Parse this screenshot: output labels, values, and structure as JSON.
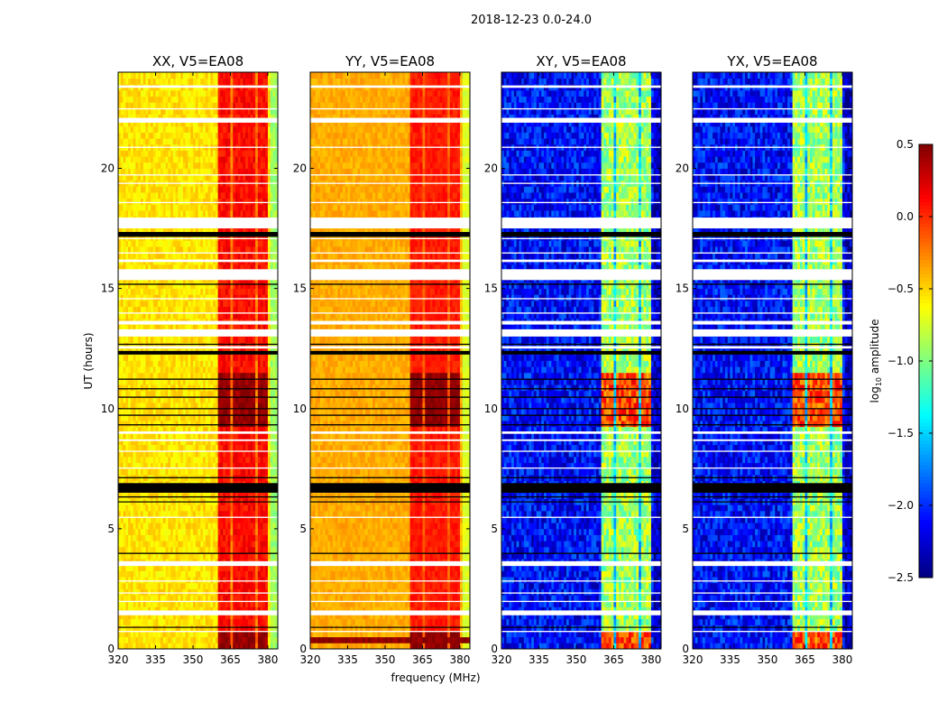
{
  "chart_data": {
    "type": "heatmap",
    "title": "2018-12-23 0.0-24.0",
    "xlabel": "frequency (MHz)",
    "ylabel": "UT (hours)",
    "xlim": [
      320,
      384
    ],
    "ylim": [
      0,
      24
    ],
    "xticks": [
      "320",
      "335",
      "350",
      "365",
      "380"
    ],
    "xtick_values": [
      320,
      335,
      350,
      365,
      380
    ],
    "yticks": [
      "0",
      "5",
      "10",
      "15",
      "20"
    ],
    "ytick_values": [
      0,
      5,
      10,
      15,
      20
    ],
    "colorbar": {
      "label_main": "log",
      "label_sub": "10",
      "label_rest": " amplitude",
      "range": [
        -2.5,
        0.5
      ],
      "ticks": [
        "0.5",
        "0.0",
        "−0.5",
        "−1.0",
        "−1.5",
        "−2.0",
        "−2.5"
      ],
      "tick_values": [
        0.5,
        0.0,
        -0.5,
        -1.0,
        -1.5,
        -2.0,
        -2.5
      ],
      "colormap": "jet"
    },
    "rfi_bands_mhz": [
      [
        360.5,
        364.8
      ],
      [
        365.8,
        369.8
      ],
      [
        370.5,
        374.9
      ],
      [
        375.6,
        380.0
      ]
    ],
    "strong_rfi_hours": [
      [
        9.2,
        11.6
      ],
      [
        0.1,
        0.7
      ]
    ],
    "panels": [
      {
        "title": "XX, V5=EA08",
        "background_log10": -0.55,
        "band_log10": 0.1,
        "strong_band_log10": 0.45,
        "noise": 0.12
      },
      {
        "title": "YY, V5=EA08",
        "background_log10": -0.38,
        "band_log10": 0.05,
        "strong_band_log10": 0.45,
        "noise": 0.08,
        "low_row_hours": [
          0.2,
          0.5
        ],
        "low_row_log10": 0.45
      },
      {
        "title": "XY, V5=EA08",
        "background_log10": -2.1,
        "band_log10": -0.9,
        "strong_band_log10": -0.1,
        "noise": 0.3
      },
      {
        "title": "YX, V5=EA08",
        "background_log10": -2.1,
        "band_log10": -0.9,
        "strong_band_log10": -0.1,
        "noise": 0.3
      }
    ],
    "flagged_rows_hours": [
      {
        "t": [
          23.35,
          23.45
        ],
        "kind": "white"
      },
      {
        "t": [
          22.45,
          22.5
        ],
        "kind": "white"
      },
      {
        "t": [
          21.9,
          22.1
        ],
        "kind": "white"
      },
      {
        "t": [
          20.85,
          20.9
        ],
        "kind": "white"
      },
      {
        "t": [
          19.7,
          19.75
        ],
        "kind": "white"
      },
      {
        "t": [
          19.35,
          19.4
        ],
        "kind": "white"
      },
      {
        "t": [
          18.55,
          18.6
        ],
        "kind": "white"
      },
      {
        "t": [
          17.5,
          17.95
        ],
        "kind": "white"
      },
      {
        "t": [
          17.15,
          17.35
        ],
        "kind": "black"
      },
      {
        "t": [
          17.05,
          17.1
        ],
        "kind": "white"
      },
      {
        "t": [
          16.45,
          16.5
        ],
        "kind": "white"
      },
      {
        "t": [
          16.1,
          16.2
        ],
        "kind": "white"
      },
      {
        "t": [
          15.35,
          15.8
        ],
        "kind": "white"
      },
      {
        "t": [
          15.15,
          15.2
        ],
        "kind": "black"
      },
      {
        "t": [
          14.55,
          14.6
        ],
        "kind": "white"
      },
      {
        "t": [
          13.95,
          14.0
        ],
        "kind": "white"
      },
      {
        "t": [
          13.5,
          13.65
        ],
        "kind": "white"
      },
      {
        "t": [
          13.0,
          13.3
        ],
        "kind": "white"
      },
      {
        "t": [
          12.65,
          12.7
        ],
        "kind": "black"
      },
      {
        "t": [
          12.5,
          12.6
        ],
        "kind": "white"
      },
      {
        "t": [
          12.25,
          12.4
        ],
        "kind": "black"
      },
      {
        "t": [
          11.2,
          11.25
        ],
        "kind": "black"
      },
      {
        "t": [
          10.8,
          10.85
        ],
        "kind": "black"
      },
      {
        "t": [
          10.45,
          10.5
        ],
        "kind": "black"
      },
      {
        "t": [
          9.98,
          10.02
        ],
        "kind": "black"
      },
      {
        "t": [
          9.7,
          9.75
        ],
        "kind": "black"
      },
      {
        "t": [
          9.3,
          9.35
        ],
        "kind": "black"
      },
      {
        "t": [
          8.95,
          9.05
        ],
        "kind": "white"
      },
      {
        "t": [
          8.65,
          8.72
        ],
        "kind": "white"
      },
      {
        "t": [
          8.2,
          8.25
        ],
        "kind": "white"
      },
      {
        "t": [
          7.5,
          7.55
        ],
        "kind": "white"
      },
      {
        "t": [
          7.1,
          7.15
        ],
        "kind": "black"
      },
      {
        "t": [
          6.5,
          6.9
        ],
        "kind": "black"
      },
      {
        "t": [
          6.3,
          6.35
        ],
        "kind": "black"
      },
      {
        "t": [
          6.1,
          6.14
        ],
        "kind": "black"
      },
      {
        "t": [
          5.45,
          5.5
        ],
        "kind": "white"
      },
      {
        "t": [
          3.95,
          4.0
        ],
        "kind": "black"
      },
      {
        "t": [
          3.45,
          3.65
        ],
        "kind": "white"
      },
      {
        "t": [
          2.8,
          2.85
        ],
        "kind": "white"
      },
      {
        "t": [
          2.3,
          2.35
        ],
        "kind": "white"
      },
      {
        "t": [
          1.95,
          2.0
        ],
        "kind": "white"
      },
      {
        "t": [
          1.4,
          1.6
        ],
        "kind": "white"
      },
      {
        "t": [
          0.88,
          0.92
        ],
        "kind": "black"
      },
      {
        "t": [
          0.7,
          0.75
        ],
        "kind": "white"
      }
    ]
  }
}
